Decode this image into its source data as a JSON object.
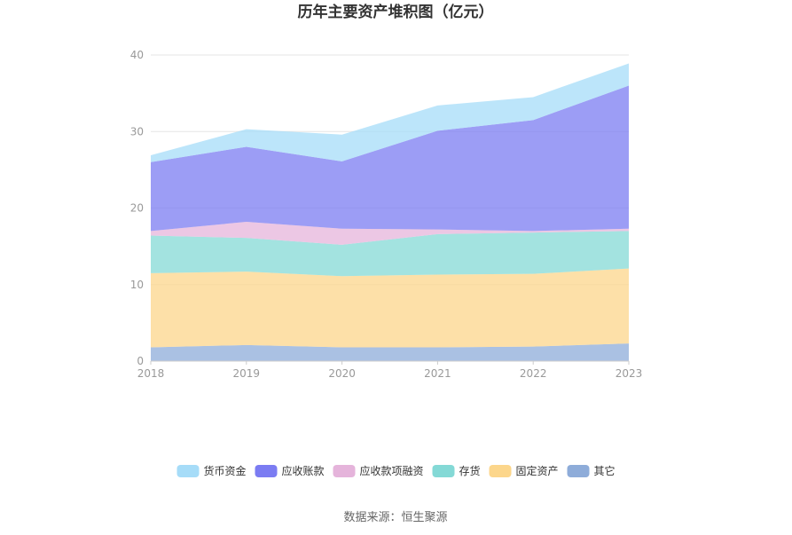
{
  "chart_data": {
    "type": "area",
    "stacked": true,
    "title": "历年主要资产堆积图（亿元）",
    "x": [
      "2018",
      "2019",
      "2020",
      "2021",
      "2022",
      "2023"
    ],
    "ylim": [
      0,
      40
    ],
    "yticks": [
      0,
      10,
      20,
      30,
      40
    ],
    "grid": true,
    "legend_position": "bottom",
    "series": [
      {
        "name": "其它",
        "color": "#8eacd9",
        "values": [
          1.8,
          2.1,
          1.8,
          1.8,
          1.9,
          2.3
        ]
      },
      {
        "name": "固定资产",
        "color": "#fcd68b",
        "values": [
          9.7,
          9.6,
          9.3,
          9.5,
          9.5,
          9.8
        ]
      },
      {
        "name": "存货",
        "color": "#84d9d6",
        "values": [
          4.9,
          4.4,
          4.1,
          5.3,
          5.4,
          4.9
        ]
      },
      {
        "name": "应收款项融资",
        "color": "#e5b4db",
        "values": [
          0.6,
          2.1,
          2.1,
          0.6,
          0.2,
          0.3
        ]
      },
      {
        "name": "应收账款",
        "color": "#7b7cf2",
        "values": [
          9.0,
          9.8,
          8.8,
          12.9,
          14.5,
          18.7
        ]
      },
      {
        "name": "货币资金",
        "color": "#a6dcf8",
        "values": [
          0.9,
          2.3,
          3.5,
          3.3,
          3.0,
          2.9
        ]
      }
    ],
    "legend_order": [
      "货币资金",
      "应收账款",
      "应收款项融资",
      "存货",
      "固定资产",
      "其它"
    ]
  },
  "source": "数据来源：恒生聚源"
}
